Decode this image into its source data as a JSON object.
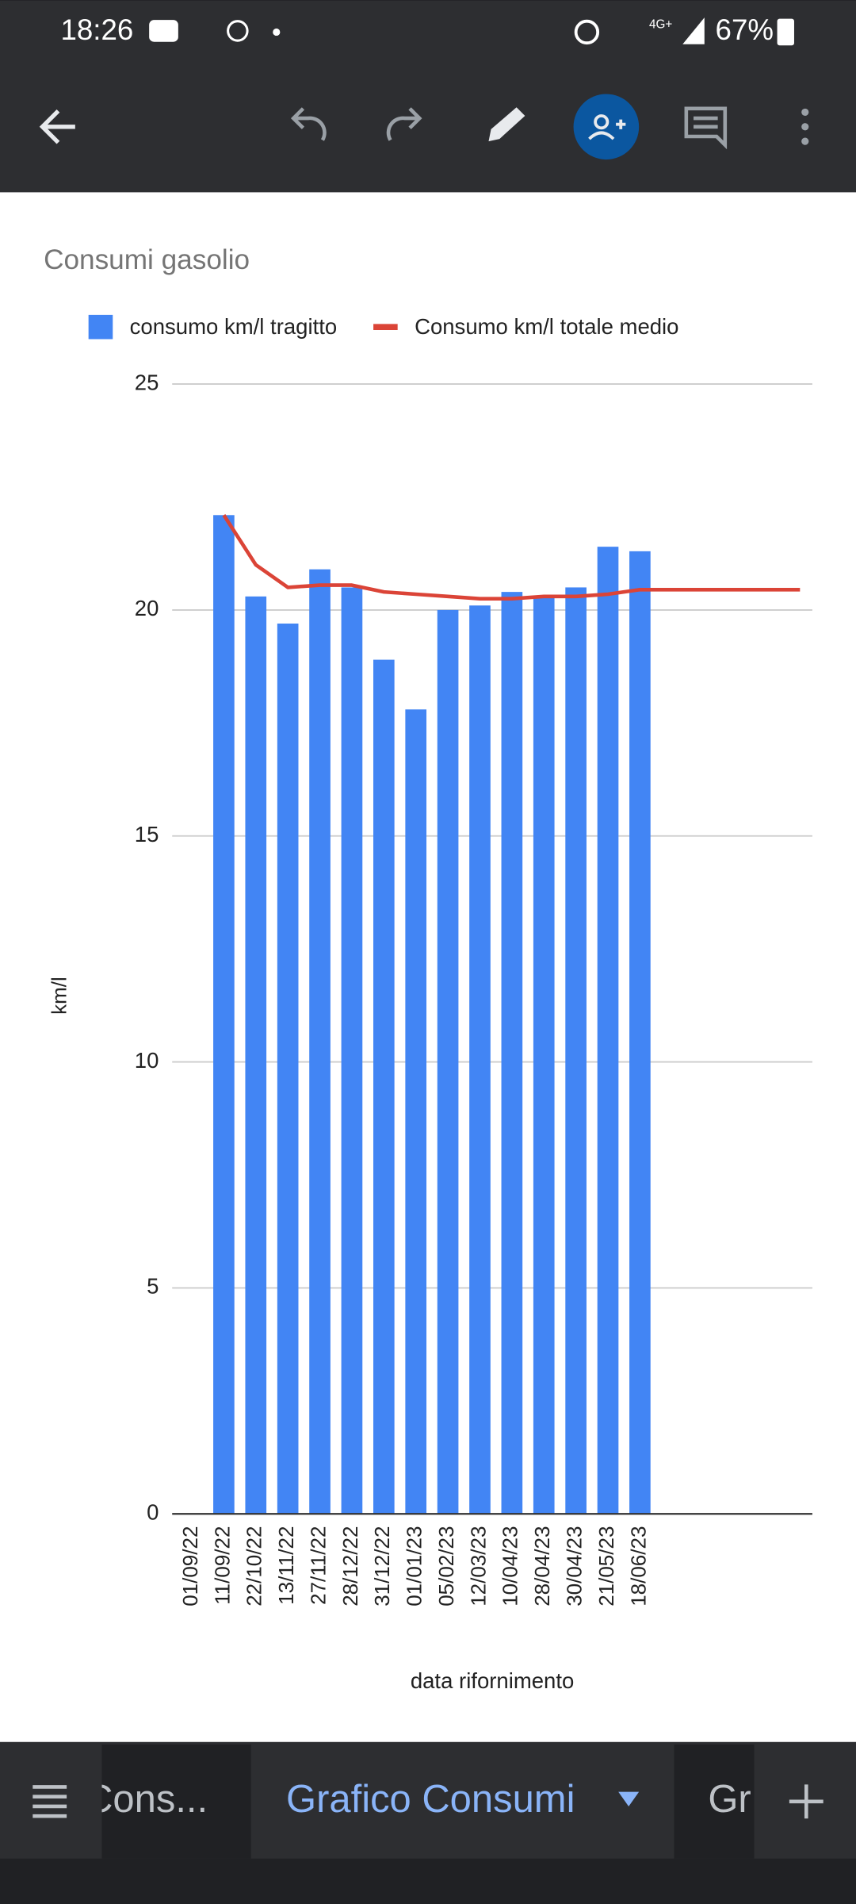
{
  "status_bar": {
    "time": "18:26",
    "network": "4G+",
    "battery": "67%"
  },
  "chart_data": {
    "type": "combo",
    "title": "Consumi gasolio",
    "x_label": "data rifornimento",
    "y_label": "km/l",
    "categories": [
      "01/09/22",
      "11/09/22",
      "22/10/22",
      "13/11/22",
      "27/11/22",
      "28/12/22",
      "31/12/22",
      "01/01/23",
      "05/02/23",
      "12/03/23",
      "10/04/23",
      "28/04/23",
      "30/04/23",
      "21/05/23",
      "18/06/23",
      null,
      null,
      null,
      null,
      null
    ],
    "series": [
      {
        "name": "consumo km/l tragitto",
        "type": "bar",
        "color": "#4285f4",
        "values": [
          null,
          22.1,
          20.3,
          19.7,
          20.9,
          20.5,
          18.9,
          17.8,
          20.0,
          20.1,
          20.4,
          20.3,
          20.5,
          21.4,
          21.3,
          null,
          null,
          null,
          null,
          null
        ]
      },
      {
        "name": "Consumo km/l totale medio",
        "type": "line",
        "color": "#db4437",
        "values": [
          null,
          22.1,
          21.0,
          20.5,
          20.55,
          20.55,
          20.4,
          20.35,
          20.3,
          20.25,
          20.25,
          20.3,
          20.3,
          20.35,
          20.45,
          20.45,
          20.45,
          20.45,
          20.45,
          20.45
        ]
      }
    ],
    "ylim": [
      0,
      25
    ],
    "yticks": [
      0,
      5,
      10,
      15,
      20,
      25
    ],
    "grid": true,
    "legend": "top"
  },
  "tabs": [
    "Cons...",
    "Grafico Consumi",
    "Gr"
  ]
}
